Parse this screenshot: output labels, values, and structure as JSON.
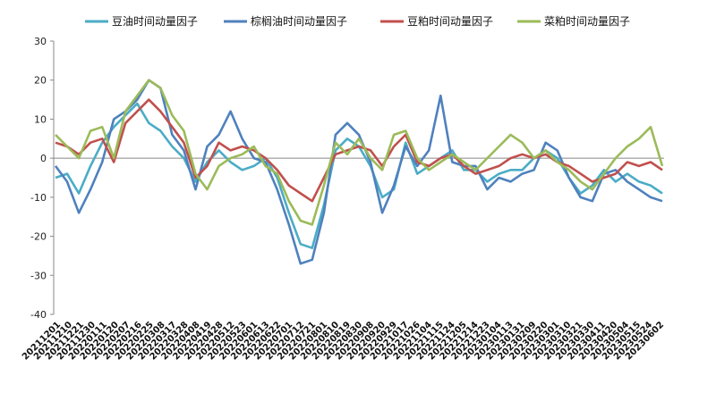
{
  "chart_data": {
    "type": "line",
    "title": "",
    "xlabel": "",
    "ylabel": "",
    "ylim": [
      -40,
      30
    ],
    "yticks": [
      30,
      20,
      10,
      0,
      -10,
      -20,
      -30,
      -40
    ],
    "grid": false,
    "legend_position": "top",
    "x_tick_labels": [
      "20211201",
      "20211210",
      "20211221",
      "20211230",
      "20220111",
      "20220120",
      "20220207",
      "20220216",
      "20220225",
      "20220308",
      "20220317",
      "20220328",
      "20220408",
      "20220419",
      "20220428",
      "20220512",
      "20220523",
      "20220601",
      "20220613",
      "20220622",
      "20220701",
      "20220712",
      "20220721",
      "20220801",
      "20220810",
      "20220819",
      "20220830",
      "20220908",
      "20220920",
      "20220929",
      "20221017",
      "20221026",
      "20221104",
      "20221115",
      "20221124",
      "20221205",
      "20221214",
      "20221223",
      "20230104",
      "20230113",
      "20230131",
      "20230209",
      "20230220",
      "20230301",
      "20230310",
      "20230321",
      "20230330",
      "20230411",
      "20230420",
      "20230504",
      "20230515",
      "20230524",
      "20230602"
    ],
    "series": [
      {
        "name": "豆油时间动量因子",
        "color": "#4BACC6",
        "values": [
          -5,
          -4,
          -9,
          -2,
          4,
          8,
          11,
          14,
          9,
          7,
          3,
          0,
          -6,
          -1,
          2,
          -1,
          -3,
          -2,
          0,
          -5,
          -14,
          -22,
          -23,
          -12,
          2,
          5,
          3,
          -2,
          -10,
          -8,
          4,
          -4,
          -2,
          0,
          2,
          -3,
          -3,
          -6,
          -4,
          -3,
          -3,
          0,
          2,
          0,
          -5,
          -9,
          -7,
          -3,
          -6,
          -4,
          -6,
          -7,
          -9
        ]
      },
      {
        "name": "棕榈油时间动量因子",
        "color": "#4F81BD",
        "values": [
          -2,
          -6,
          -14,
          -8,
          -1,
          10,
          12,
          15,
          20,
          18,
          6,
          2,
          -8,
          3,
          6,
          12,
          5,
          0,
          -1,
          -8,
          -17,
          -27,
          -26,
          -14,
          6,
          9,
          6,
          -1,
          -14,
          -7,
          3,
          -2,
          2,
          16,
          -1,
          -2,
          -2,
          -8,
          -5,
          -6,
          -4,
          -3,
          4,
          2,
          -5,
          -10,
          -11,
          -4,
          -3,
          -6,
          -8,
          -10,
          -11
        ]
      },
      {
        "name": "豆粕时间动量因子",
        "color": "#C0504D",
        "values": [
          4,
          3,
          1,
          4,
          5,
          -1,
          9,
          12,
          15,
          12,
          8,
          4,
          -5,
          -2,
          4,
          2,
          3,
          2,
          0,
          -3,
          -7,
          -9,
          -11,
          -5,
          1,
          2,
          3,
          2,
          -2,
          3,
          6,
          -1,
          -2,
          0,
          1,
          -2,
          -4,
          -3,
          -2,
          0,
          1,
          0,
          1,
          -1,
          -2,
          -4,
          -6,
          -5,
          -4,
          -1,
          -2,
          -1,
          -3
        ]
      },
      {
        "name": "菜粕时间动量因子",
        "color": "#9BBB59",
        "values": [
          6,
          3,
          0,
          7,
          8,
          0,
          12,
          16,
          20,
          18,
          11,
          7,
          -4,
          -8,
          -2,
          0,
          1,
          3,
          -2,
          -4,
          -11,
          -16,
          -17,
          -7,
          4,
          1,
          5,
          0,
          -3,
          6,
          7,
          0,
          -3,
          -1,
          1,
          -1,
          -3,
          0,
          3,
          6,
          4,
          0,
          2,
          -1,
          -3,
          -6,
          -8,
          -4,
          0,
          3,
          5,
          8,
          -2
        ]
      }
    ]
  }
}
